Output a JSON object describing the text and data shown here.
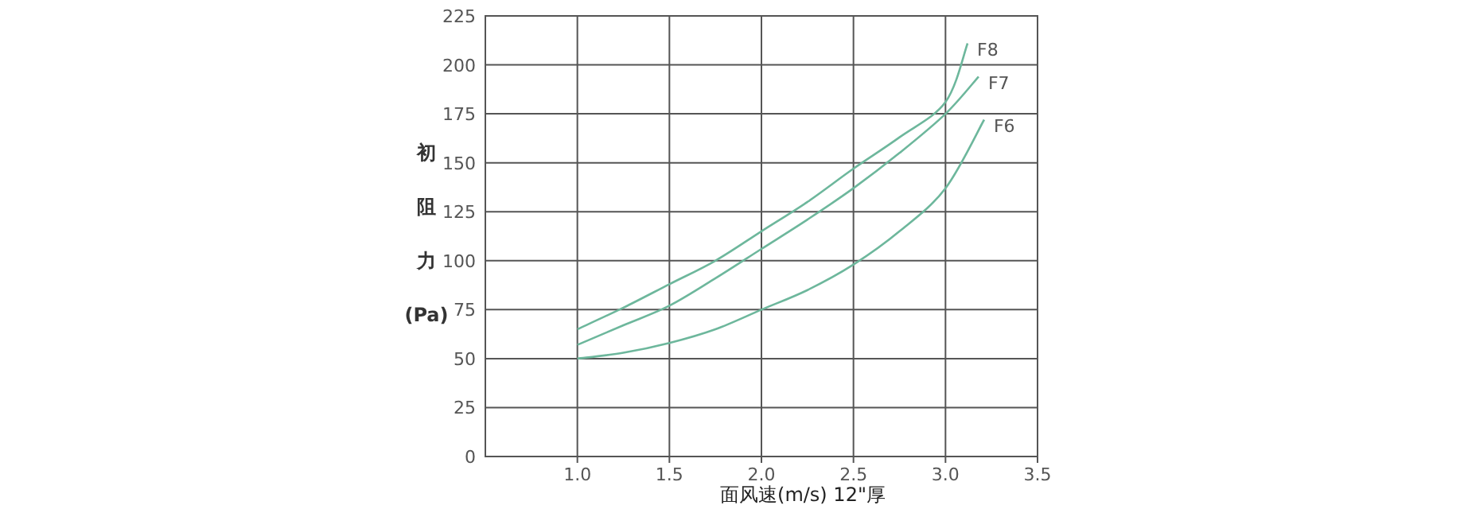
{
  "chart_data": {
    "type": "line",
    "xlabel": "面风速(m/s)  12\"厚",
    "ylabel": "初阻力(Pa)",
    "xlim": [
      0.5,
      3.5
    ],
    "ylim": [
      0,
      225
    ],
    "xticks": [
      {
        "value": 1,
        "label": "1.0"
      },
      {
        "value": 1.5,
        "label": "1.5"
      },
      {
        "value": 2,
        "label": "2.0"
      },
      {
        "value": 2.5,
        "label": "2.5"
      },
      {
        "value": 3,
        "label": "3.0"
      },
      {
        "value": 3.5,
        "label": "3.5"
      }
    ],
    "yticks": [
      0,
      25,
      50,
      75,
      100,
      125,
      150,
      175,
      200,
      225
    ],
    "grid": true,
    "marker": "none",
    "line_style": "solid",
    "series": [
      {
        "name": "F8",
        "color": "#6db79c",
        "x": [
          1.0,
          1.25,
          1.5,
          1.75,
          2.0,
          2.25,
          2.5,
          2.75,
          3.0,
          3.12
        ],
        "values": [
          65,
          76,
          88,
          100,
          115,
          130,
          147,
          163,
          181,
          211
        ]
      },
      {
        "name": "F7",
        "color": "#6db79c",
        "x": [
          1.0,
          1.25,
          1.5,
          1.75,
          2.0,
          2.25,
          2.5,
          2.75,
          3.0,
          3.18
        ],
        "values": [
          57,
          67,
          77,
          91,
          106,
          121,
          137,
          155,
          175,
          194
        ]
      },
      {
        "name": "F6",
        "color": "#6db79c",
        "x": [
          1.0,
          1.25,
          1.5,
          1.75,
          2.0,
          2.25,
          2.5,
          2.75,
          3.0,
          3.21
        ],
        "values": [
          50,
          53,
          58,
          65,
          75,
          85,
          98,
          115,
          137,
          172
        ]
      }
    ]
  }
}
